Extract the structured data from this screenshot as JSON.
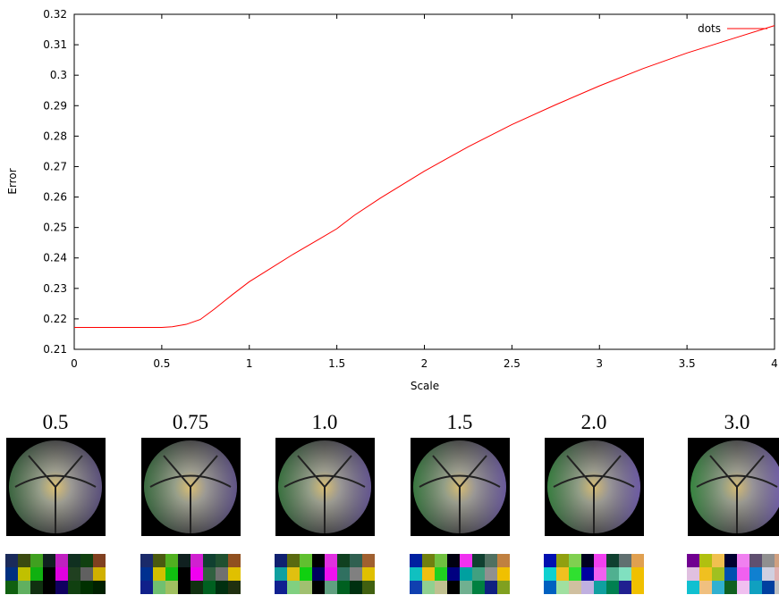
{
  "chart_data": {
    "type": "line",
    "xlabel": "Scale",
    "ylabel": "Error",
    "x": [
      0,
      0.25,
      0.5,
      0.56,
      0.64,
      0.72,
      0.8,
      0.9,
      1,
      1.1,
      1.25,
      1.4,
      1.5,
      1.6,
      1.75,
      2,
      2.25,
      2.5,
      2.75,
      3,
      3.25,
      3.5,
      3.75,
      4
    ],
    "series": [
      {
        "name": "dots",
        "color": "#ff0000",
        "values": [
          0.2172,
          0.2172,
          0.2172,
          0.2174,
          0.2182,
          0.2198,
          0.2232,
          0.2278,
          0.2322,
          0.2358,
          0.2412,
          0.2462,
          0.2496,
          0.254,
          0.2597,
          0.2685,
          0.2765,
          0.2838,
          0.2903,
          0.2965,
          0.3022,
          0.3073,
          0.3118,
          0.3163
        ]
      }
    ],
    "xlim": [
      0,
      4
    ],
    "xticks": [
      0,
      0.5,
      1,
      1.5,
      2,
      2.5,
      3,
      3.5,
      4
    ],
    "ylim": [
      0.21,
      0.32
    ],
    "yticks": [
      0.21,
      0.22,
      0.23,
      0.24,
      0.25,
      0.26,
      0.27,
      0.28,
      0.29,
      0.3,
      0.31,
      0.32
    ],
    "grid": false,
    "legend": "upper right"
  },
  "panels": [
    {
      "label": "0.5",
      "palette": [
        "#1a2a5a",
        "#3a4a10",
        "#40a020",
        "#102020",
        "#c020c0",
        "#103020",
        "#104010",
        "#804020",
        "#003080",
        "#c0c000",
        "#10b010",
        "#000000",
        "#e000e0",
        "#204020",
        "#606060",
        "#d0b000",
        "#106010",
        "#60b060",
        "#103010",
        "#000000",
        "#100060",
        "#104010",
        "#003000",
        "#002000"
      ]
    },
    {
      "label": "0.75",
      "palette": [
        "#1a2a6a",
        "#4a5a10",
        "#50b020",
        "#102020",
        "#d020d0",
        "#104030",
        "#205030",
        "#905020",
        "#003090",
        "#d0c000",
        "#10c010",
        "#000000",
        "#f000f0",
        "#306040",
        "#707070",
        "#e0c000",
        "#10208a",
        "#70c070",
        "#a0c060",
        "#000000",
        "#103010",
        "#006020",
        "#003010",
        "#203010"
      ]
    },
    {
      "label": "1.0",
      "palette": [
        "#102070",
        "#5a6a10",
        "#60c030",
        "#000000",
        "#e030e0",
        "#104020",
        "#306050",
        "#a06030",
        "#10a0a0",
        "#e0c010",
        "#10d010",
        "#000060",
        "#f010f0",
        "#307060",
        "#808080",
        "#e0c000",
        "#102090",
        "#80d080",
        "#a0c070",
        "#000000",
        "#60a080",
        "#006020",
        "#003010",
        "#406010"
      ]
    },
    {
      "label": "1.5",
      "palette": [
        "#0020a0",
        "#708010",
        "#70c040",
        "#000010",
        "#f030f0",
        "#104030",
        "#507060",
        "#c08040",
        "#10c0c0",
        "#f0c010",
        "#20d020",
        "#000080",
        "#00a0a0",
        "#40a080",
        "#909090",
        "#f0c000",
        "#1040b0",
        "#90d090",
        "#c0c090",
        "#000000",
        "#70b090",
        "#008040",
        "#102080",
        "#80a020"
      ]
    },
    {
      "label": "2.0",
      "palette": [
        "#0010b0",
        "#90a010",
        "#80d050",
        "#000020",
        "#f040f0",
        "#104030",
        "#607070",
        "#e0a050",
        "#10d0d0",
        "#f0c020",
        "#30e030",
        "#0000a0",
        "#f060f0",
        "#50b090",
        "#80e0c0",
        "#f0c000",
        "#0060c0",
        "#a0e0a0",
        "#d0c0a0",
        "#c0b0e0",
        "#10a0a0",
        "#008050",
        "#202090",
        "#f0c000"
      ]
    },
    {
      "label": "3.0",
      "palette": [
        "#700090",
        "#b0c010",
        "#f0c050",
        "#000030",
        "#f080f0",
        "#605070",
        "#909090",
        "#d0a080",
        "#e0c0e0",
        "#f0c020",
        "#a0c020",
        "#0050b0",
        "#f060f0",
        "#1080d0",
        "#d0d0e0",
        "#e0b0b0",
        "#10c0d0",
        "#f0c080",
        "#30b0d0",
        "#106020",
        "#f0c0f0",
        "#10a0c0",
        "#0040a0",
        "#c0c0c0"
      ]
    }
  ]
}
